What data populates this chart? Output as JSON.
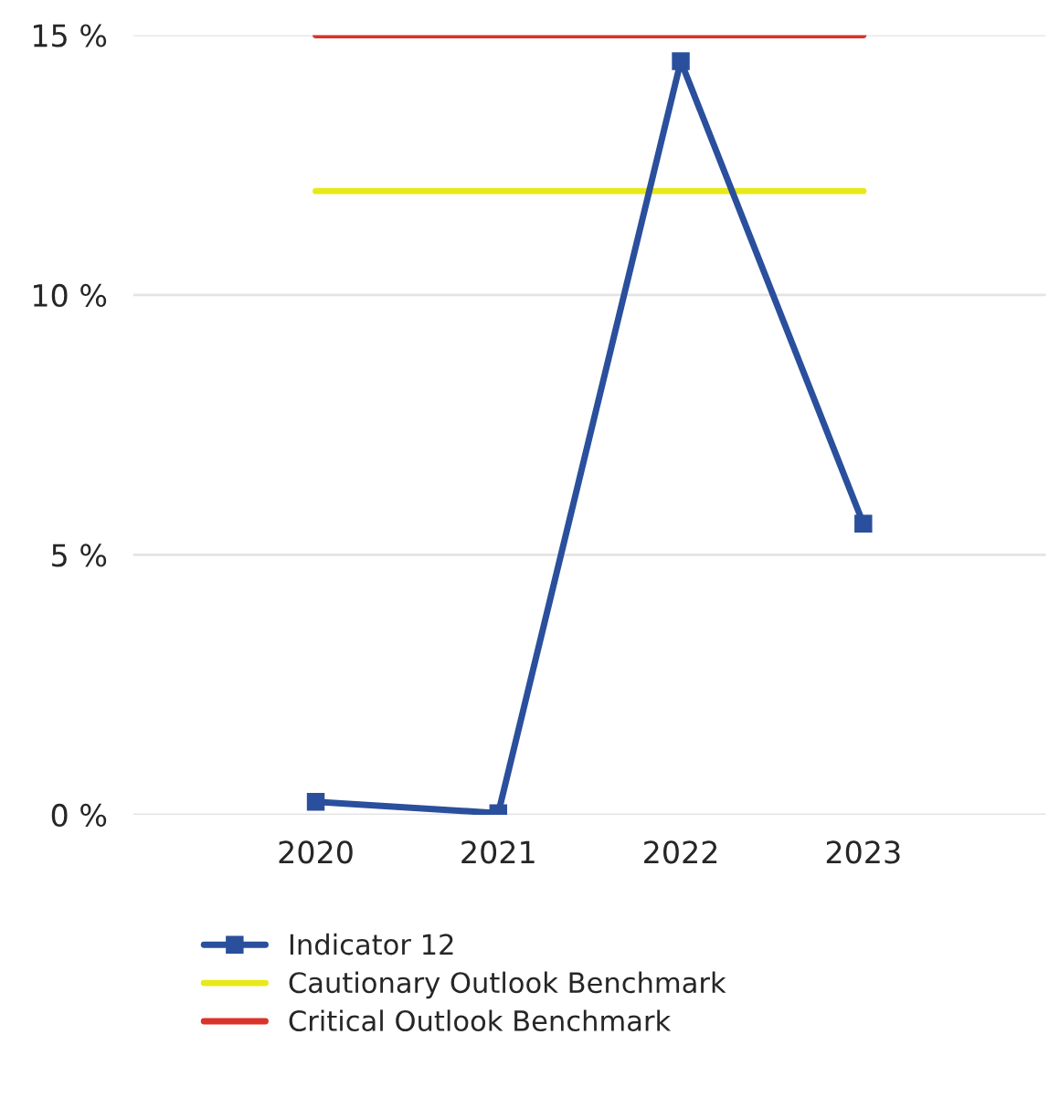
{
  "chart_data": {
    "type": "line",
    "categories": [
      "2020",
      "2021",
      "2022",
      "2023"
    ],
    "series": [
      {
        "name": "Indicator 12",
        "color": "#2a4f9c",
        "values": [
          0.25,
          0.03,
          14.5,
          5.6
        ],
        "marker": "square"
      },
      {
        "name": "Cautionary Outlook Benchmark",
        "color": "#e8e81a",
        "values": [
          12,
          12,
          12,
          12
        ],
        "marker": "none"
      },
      {
        "name": "Critical Outlook Benchmark",
        "color": "#d9352a",
        "values": [
          15,
          15,
          15,
          15
        ],
        "marker": "none"
      }
    ],
    "ylim": [
      0,
      15
    ],
    "yticks": [
      {
        "value": 0,
        "label": "0 %"
      },
      {
        "value": 5,
        "label": "5 %"
      },
      {
        "value": 10,
        "label": "10 %"
      },
      {
        "value": 15,
        "label": "15 %"
      }
    ],
    "grid": "y",
    "legend": "bottom",
    "line_style": "solid"
  }
}
